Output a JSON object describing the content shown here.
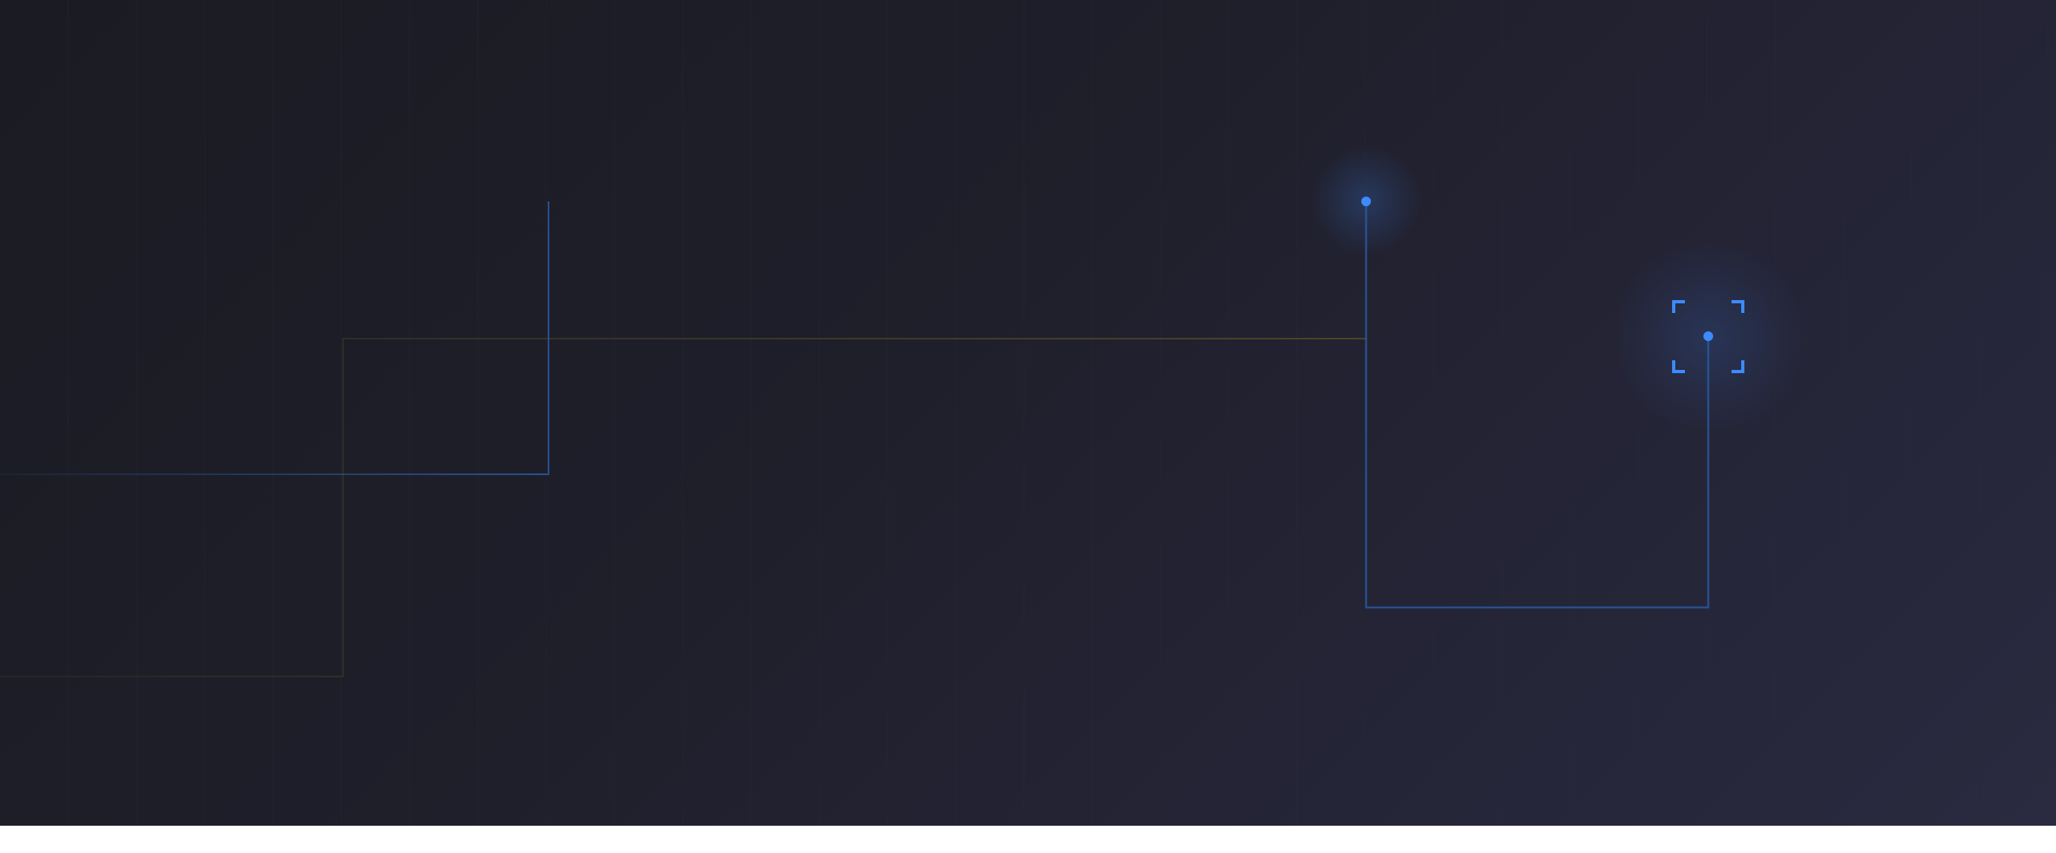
{
  "scene": {
    "background_gradient": [
      "#1b1b23",
      "#1f1f2b",
      "#252538",
      "#2a2a40"
    ],
    "grid_line_color": "#2a2a36",
    "lines": [
      {
        "name": "blue-circuit-line-upper",
        "color": "#2f6fd0"
      },
      {
        "name": "orange-circuit-line",
        "color": "#8a5a2e"
      },
      {
        "name": "blue-circuit-line-lower",
        "color": "#2a5ea8"
      },
      {
        "name": "yellow-circuit-line",
        "color": "#5a5024"
      },
      {
        "name": "blue-circuit-line-right",
        "color": "#2a5ea8"
      }
    ],
    "accent_color": "#3d8bff",
    "footer_color": "#ffffff"
  }
}
